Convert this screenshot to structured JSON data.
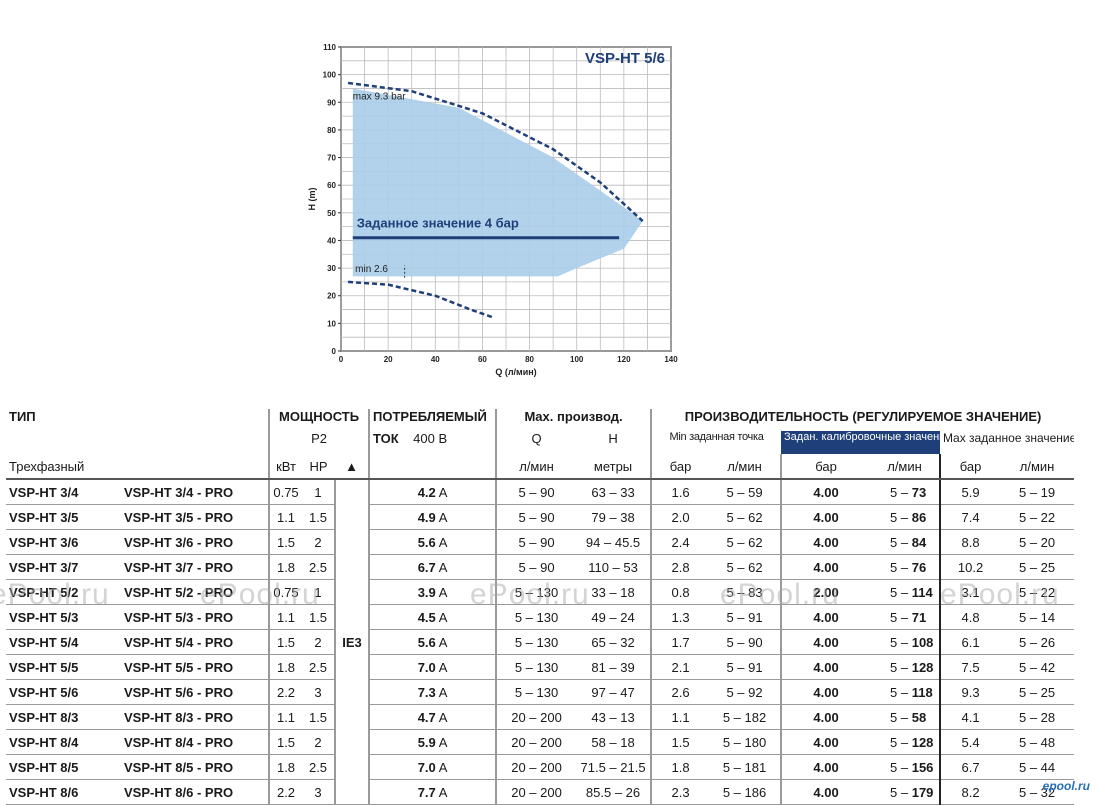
{
  "chart_data": {
    "type": "area",
    "title": "VSP-HT 5/6",
    "xlabel": "Q (л/мин)",
    "ylabel": "H (m)",
    "xlim": [
      0,
      140
    ],
    "ylim": [
      0,
      110
    ],
    "x_ticks": [
      "0",
      "20",
      "40",
      "60",
      "80",
      "100",
      "120",
      "140"
    ],
    "y_ticks": [
      "0",
      "10",
      "20",
      "30",
      "40",
      "50",
      "60",
      "70",
      "80",
      "90",
      "100",
      "110"
    ],
    "grid": true,
    "fill_color": "#a9cde8",
    "line_color": "#1f3f7a",
    "regulated_area": [
      [
        5,
        95
      ],
      [
        50,
        88
      ],
      [
        90,
        70
      ],
      [
        120,
        52
      ],
      [
        128,
        47
      ],
      [
        120,
        37
      ],
      [
        100,
        30
      ],
      [
        92,
        27
      ],
      [
        5,
        27
      ]
    ],
    "max_curve": [
      [
        3,
        97
      ],
      [
        30,
        94
      ],
      [
        60,
        86
      ],
      [
        90,
        73
      ],
      [
        110,
        61
      ],
      [
        128,
        47
      ]
    ],
    "min_curve": [
      [
        3,
        25
      ],
      [
        20,
        24
      ],
      [
        40,
        20
      ],
      [
        55,
        15
      ],
      [
        65,
        12
      ]
    ],
    "setpoint_line": {
      "x": [
        5,
        118
      ],
      "y": 41,
      "label": "Заданное значение 4 бар"
    },
    "annotations": {
      "max_label": "max 9.3 bar",
      "min_label": "min 2.6"
    }
  },
  "table": {
    "h_type": "ТИП",
    "h_power": "МОЩНОСТЬ",
    "h_p2": "P2",
    "h_current": "ПОТРЕБЛЯЕМЫЙ",
    "h_current2": "ТОК",
    "h_400v": "400 В",
    "h_maxperf": "Max. производ.",
    "h_q": "Q",
    "h_h": "H",
    "h_regperf": "ПРОИЗВОДИТЕЛЬНОСТЬ (РЕГУЛИРУЕМОЕ ЗНАЧЕНИЕ)",
    "h_minset": "Min заданная точка",
    "h_calset": "Задан. калибровочные значения",
    "h_maxset": "Max заданное значение",
    "h_phase": "Трехфазный",
    "h_kw": "кВт",
    "h_hp": "HP",
    "h_tri": "▲",
    "h_lmin": "л/мин",
    "h_m": "метры",
    "h_bar": "бар",
    "ie": "IE3",
    "amp": "A",
    "rows": [
      {
        "model": "VSP-HT 3/4",
        "pro": "VSP-HT 3/4 - PRO",
        "kw": "0.75",
        "hp": "1",
        "cur": "4.2",
        "q": "5 – 90",
        "h": "63 – 33",
        "min_bar": "1.6",
        "min_flow": "5 – 59",
        "cal_bar": "4.00",
        "cal_a": "5 – ",
        "cal_b": "73",
        "max_bar": "5.9",
        "max_flow": "5 – 19"
      },
      {
        "model": "VSP-HT 3/5",
        "pro": "VSP-HT 3/5 - PRO",
        "kw": "1.1",
        "hp": "1.5",
        "cur": "4.9",
        "q": "5 – 90",
        "h": "79 – 38",
        "min_bar": "2.0",
        "min_flow": "5 – 62",
        "cal_bar": "4.00",
        "cal_a": "5 – ",
        "cal_b": "86",
        "max_bar": "7.4",
        "max_flow": "5 – 22"
      },
      {
        "model": "VSP-HT 3/6",
        "pro": "VSP-HT 3/6 - PRO",
        "kw": "1.5",
        "hp": "2",
        "cur": "5.6",
        "q": "5 – 90",
        "h": "94 – 45.5",
        "min_bar": "2.4",
        "min_flow": "5 – 62",
        "cal_bar": "4.00",
        "cal_a": "5 – ",
        "cal_b": "84",
        "max_bar": "8.8",
        "max_flow": "5 – 20"
      },
      {
        "model": "VSP-HT 3/7",
        "pro": "VSP-HT 3/7 - PRO",
        "kw": "1.8",
        "hp": "2.5",
        "cur": "6.7",
        "q": "5 – 90",
        "h": "110 – 53",
        "min_bar": "2.8",
        "min_flow": "5 – 62",
        "cal_bar": "4.00",
        "cal_a": "5 – ",
        "cal_b": "76",
        "max_bar": "10.2",
        "max_flow": "5 – 25"
      },
      {
        "model": "VSP-HT 5/2",
        "pro": "VSP-HT 5/2 - PRO",
        "kw": "0.75",
        "hp": "1",
        "cur": "3.9",
        "q": "5 – 130",
        "h": "33 – 18",
        "min_bar": "0.8",
        "min_flow": "5 – 83",
        "cal_bar": "2.00",
        "cal_a": "5 – ",
        "cal_b": "114",
        "max_bar": "3.1",
        "max_flow": "5 – 22"
      },
      {
        "model": "VSP-HT 5/3",
        "pro": "VSP-HT 5/3 - PRO",
        "kw": "1.1",
        "hp": "1.5",
        "cur": "4.5",
        "q": "5 – 130",
        "h": "49 – 24",
        "min_bar": "1.3",
        "min_flow": "5 – 91",
        "cal_bar": "4.00",
        "cal_a": "5 – ",
        "cal_b": "71",
        "max_bar": "4.8",
        "max_flow": "5 – 14"
      },
      {
        "model": "VSP-HT 5/4",
        "pro": "VSP-HT 5/4 - PRO",
        "kw": "1.5",
        "hp": "2",
        "cur": "5.6",
        "q": "5 – 130",
        "h": "65 – 32",
        "min_bar": "1.7",
        "min_flow": "5 – 90",
        "cal_bar": "4.00",
        "cal_a": "5 – ",
        "cal_b": "108",
        "max_bar": "6.1",
        "max_flow": "5 – 26"
      },
      {
        "model": "VSP-HT 5/5",
        "pro": "VSP-HT 5/5 - PRO",
        "kw": "1.8",
        "hp": "2.5",
        "cur": "7.0",
        "q": "5 – 130",
        "h": "81 – 39",
        "min_bar": "2.1",
        "min_flow": "5 – 91",
        "cal_bar": "4.00",
        "cal_a": "5 – ",
        "cal_b": "128",
        "max_bar": "7.5",
        "max_flow": "5 – 42"
      },
      {
        "model": "VSP-HT 5/6",
        "pro": "VSP-HT 5/6 - PRO",
        "kw": "2.2",
        "hp": "3",
        "cur": "7.3",
        "q": "5 – 130",
        "h": "97 – 47",
        "min_bar": "2.6",
        "min_flow": "5 – 92",
        "cal_bar": "4.00",
        "cal_a": "5 – ",
        "cal_b": "118",
        "max_bar": "9.3",
        "max_flow": "5 – 25"
      },
      {
        "model": "VSP-HT 8/3",
        "pro": "VSP-HT 8/3 - PRO",
        "kw": "1.1",
        "hp": "1.5",
        "cur": "4.7",
        "q": "20 – 200",
        "h": "43 – 13",
        "min_bar": "1.1",
        "min_flow": "5 – 182",
        "cal_bar": "4.00",
        "cal_a": "5 – ",
        "cal_b": "58",
        "max_bar": "4.1",
        "max_flow": "5 – 28"
      },
      {
        "model": "VSP-HT 8/4",
        "pro": "VSP-HT 8/4 - PRO",
        "kw": "1.5",
        "hp": "2",
        "cur": "5.9",
        "q": "20 – 200",
        "h": "58 – 18",
        "min_bar": "1.5",
        "min_flow": "5 – 180",
        "cal_bar": "4.00",
        "cal_a": "5 – ",
        "cal_b": "128",
        "max_bar": "5.4",
        "max_flow": "5 – 48"
      },
      {
        "model": "VSP-HT 8/5",
        "pro": "VSP-HT 8/5 - PRO",
        "kw": "1.8",
        "hp": "2.5",
        "cur": "7.0",
        "q": "20 – 200",
        "h": "71.5 – 21.5",
        "min_bar": "1.8",
        "min_flow": "5 – 181",
        "cal_bar": "4.00",
        "cal_a": "5 – ",
        "cal_b": "156",
        "max_bar": "6.7",
        "max_flow": "5 – 44"
      },
      {
        "model": "VSP-HT 8/6",
        "pro": "VSP-HT 8/6 - PRO",
        "kw": "2.2",
        "hp": "3",
        "cur": "7.7",
        "q": "20 – 200",
        "h": "85.5 – 26",
        "min_bar": "2.3",
        "min_flow": "5 – 186",
        "cal_bar": "4.00",
        "cal_a": "5 – ",
        "cal_b": "179",
        "max_bar": "8.2",
        "max_flow": "5 – 32"
      }
    ]
  },
  "watermark": "ePool.ru",
  "corner_logo": "epool.ru"
}
